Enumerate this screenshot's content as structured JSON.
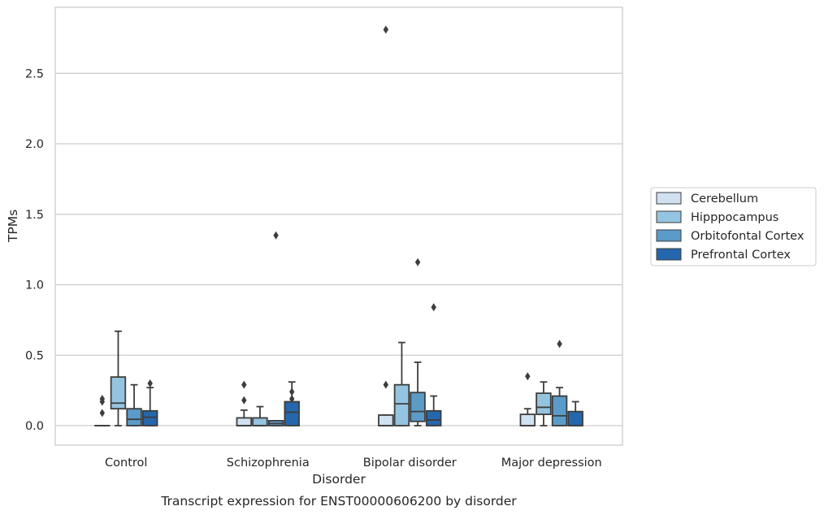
{
  "chart_data": {
    "type": "box",
    "title": "",
    "caption": "Transcript expression for ENST00000606200 by disorder",
    "xlabel": "Disorder",
    "ylabel": "TPMs",
    "ylim": [
      -0.14,
      2.95
    ],
    "yticks": [
      "0.0",
      "0.5",
      "1.0",
      "1.5",
      "2.0",
      "2.5"
    ],
    "grid": "horizontal",
    "legend_position": "right",
    "categories": [
      "Control",
      "Schizophrenia",
      "Bipolar disorder",
      "Major depression"
    ],
    "series": [
      {
        "name": "Cerebellum",
        "color": "#d0e1f2",
        "boxes": [
          {
            "q1": 0.0,
            "median": 0.0,
            "q3": 0.0,
            "whislo": 0.0,
            "whishi": 0.0,
            "fliers": [
              0.09,
              0.17,
              0.19
            ]
          },
          {
            "q1": 0.0,
            "median": 0.0,
            "q3": 0.055,
            "whislo": 0.0,
            "whishi": 0.11,
            "fliers": [
              0.18,
              0.29
            ]
          },
          {
            "q1": 0.0,
            "median": 0.0,
            "q3": 0.075,
            "whislo": 0.0,
            "whishi": 0.075,
            "fliers": [
              0.29,
              2.81
            ]
          },
          {
            "q1": 0.0,
            "median": 0.0,
            "q3": 0.08,
            "whislo": 0.0,
            "whishi": 0.12,
            "fliers": [
              0.35
            ]
          }
        ]
      },
      {
        "name": "Hipppocampus",
        "color": "#94c4df",
        "boxes": [
          {
            "q1": 0.12,
            "median": 0.16,
            "q3": 0.345,
            "whislo": 0.0,
            "whishi": 0.67,
            "fliers": []
          },
          {
            "q1": 0.0,
            "median": 0.0,
            "q3": 0.055,
            "whislo": 0.0,
            "whishi": 0.135,
            "fliers": []
          },
          {
            "q1": 0.0,
            "median": 0.155,
            "q3": 0.29,
            "whislo": 0.0,
            "whishi": 0.59,
            "fliers": []
          },
          {
            "q1": 0.08,
            "median": 0.13,
            "q3": 0.23,
            "whislo": 0.0,
            "whishi": 0.31,
            "fliers": []
          }
        ]
      },
      {
        "name": "Orbitofontal Cortex",
        "color": "#5a9bc8",
        "boxes": [
          {
            "q1": 0.0,
            "median": 0.045,
            "q3": 0.12,
            "whislo": 0.0,
            "whishi": 0.29,
            "fliers": []
          },
          {
            "q1": 0.0,
            "median": 0.015,
            "q3": 0.035,
            "whislo": 0.0,
            "whishi": 0.035,
            "fliers": [
              1.35
            ]
          },
          {
            "q1": 0.03,
            "median": 0.1,
            "q3": 0.235,
            "whislo": 0.0,
            "whishi": 0.45,
            "fliers": [
              1.16
            ]
          },
          {
            "q1": 0.0,
            "median": 0.07,
            "q3": 0.21,
            "whislo": 0.0,
            "whishi": 0.27,
            "fliers": [
              0.58
            ]
          }
        ]
      },
      {
        "name": "Prefrontal Cortex",
        "color": "#2567ad",
        "boxes": [
          {
            "q1": 0.0,
            "median": 0.06,
            "q3": 0.105,
            "whislo": 0.0,
            "whishi": 0.27,
            "fliers": [
              0.3
            ]
          },
          {
            "q1": 0.0,
            "median": 0.095,
            "q3": 0.17,
            "whislo": 0.0,
            "whishi": 0.31,
            "fliers": [
              0.19,
              0.24
            ]
          },
          {
            "q1": 0.0,
            "median": 0.04,
            "q3": 0.105,
            "whislo": 0.0,
            "whishi": 0.21,
            "fliers": [
              0.84
            ]
          },
          {
            "q1": 0.0,
            "median": 0.0,
            "q3": 0.1,
            "whislo": 0.0,
            "whishi": 0.17,
            "fliers": []
          }
        ]
      }
    ]
  }
}
